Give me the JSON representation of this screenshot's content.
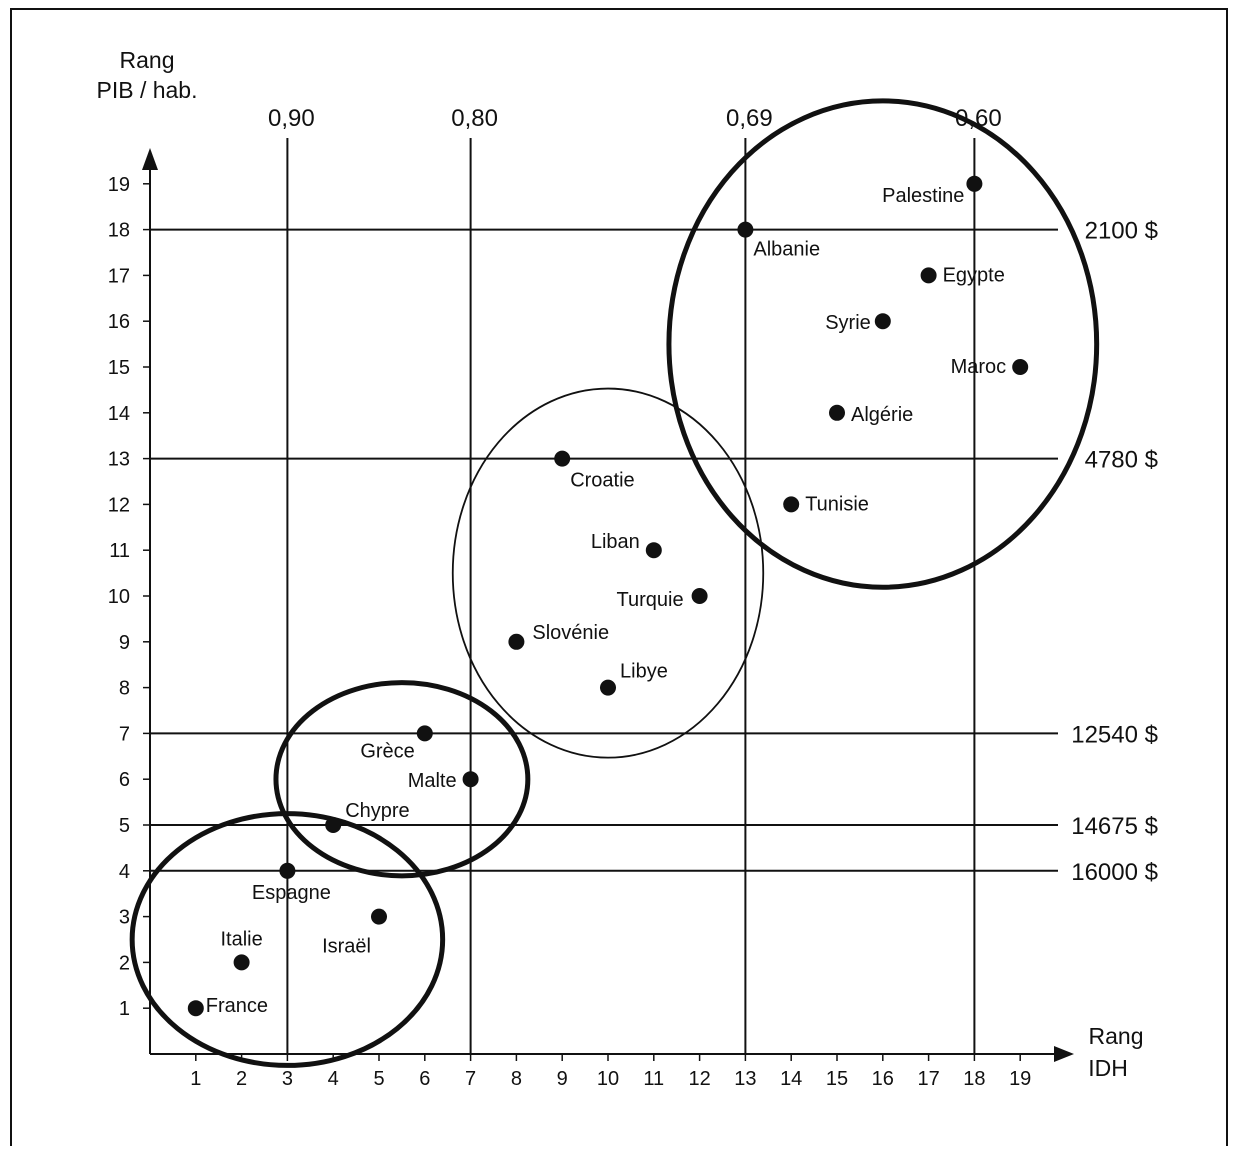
{
  "chart_data": {
    "type": "scatter",
    "title": "",
    "ylabel": [
      "Rang",
      "PIB / hab."
    ],
    "xlabel": [
      "Rang",
      "IDH"
    ],
    "xlim": [
      0,
      20
    ],
    "ylim": [
      0,
      20
    ],
    "x_ticks": [
      1,
      2,
      3,
      4,
      5,
      6,
      7,
      8,
      9,
      10,
      11,
      12,
      13,
      14,
      15,
      16,
      17,
      18,
      19
    ],
    "y_ticks": [
      1,
      2,
      3,
      4,
      5,
      6,
      7,
      8,
      9,
      10,
      11,
      12,
      13,
      14,
      15,
      16,
      17,
      18,
      19
    ],
    "idh_thresholds": [
      {
        "label": "0,90",
        "x": 3
      },
      {
        "label": "0,80",
        "x": 7
      },
      {
        "label": "0,69",
        "x": 13
      },
      {
        "label": "0,60",
        "x": 18
      }
    ],
    "income_thresholds": [
      {
        "label": "2100 $",
        "y": 18
      },
      {
        "label": "4780 $",
        "y": 13
      },
      {
        "label": "12540 $",
        "y": 7
      },
      {
        "label": "14675 $",
        "y": 5
      },
      {
        "label": "16000 $",
        "y": 4
      }
    ],
    "points": [
      {
        "name": "France",
        "x": 1,
        "y": 1
      },
      {
        "name": "Italie",
        "x": 2,
        "y": 2
      },
      {
        "name": "Espagne",
        "x": 3,
        "y": 4
      },
      {
        "name": "Israël",
        "x": 5,
        "y": 3
      },
      {
        "name": "Chypre",
        "x": 4,
        "y": 5
      },
      {
        "name": "Grèce",
        "x": 6,
        "y": 7
      },
      {
        "name": "Malte",
        "x": 7,
        "y": 6
      },
      {
        "name": "Croatie",
        "x": 9,
        "y": 13
      },
      {
        "name": "Liban",
        "x": 11,
        "y": 11
      },
      {
        "name": "Turquie",
        "x": 12,
        "y": 10
      },
      {
        "name": "Slovénie",
        "x": 8,
        "y": 9
      },
      {
        "name": "Libye",
        "x": 10,
        "y": 8
      },
      {
        "name": "Palestine",
        "x": 18,
        "y": 19
      },
      {
        "name": "Albanie",
        "x": 13,
        "y": 18
      },
      {
        "name": "Egypte",
        "x": 17,
        "y": 17
      },
      {
        "name": "Syrie",
        "x": 16,
        "y": 16
      },
      {
        "name": "Maroc",
        "x": 19,
        "y": 15
      },
      {
        "name": "Algérie",
        "x": 15,
        "y": 14
      },
      {
        "name": "Tunisie",
        "x": 14,
        "y": 12
      }
    ],
    "groups": [
      {
        "members": [
          "France",
          "Italie",
          "Espagne",
          "Israël"
        ],
        "stroke": "bold"
      },
      {
        "members": [
          "Chypre",
          "Grèce",
          "Malte"
        ],
        "stroke": "bold"
      },
      {
        "members": [
          "Croatie",
          "Liban",
          "Turquie",
          "Slovénie",
          "Libye"
        ],
        "stroke": "thin"
      },
      {
        "members": [
          "Palestine",
          "Albanie",
          "Egypte",
          "Syrie",
          "Maroc",
          "Algérie",
          "Tunisie"
        ],
        "stroke": "bold"
      }
    ],
    "colors": {
      "ink": "#111111",
      "background": "#ffffff"
    }
  }
}
